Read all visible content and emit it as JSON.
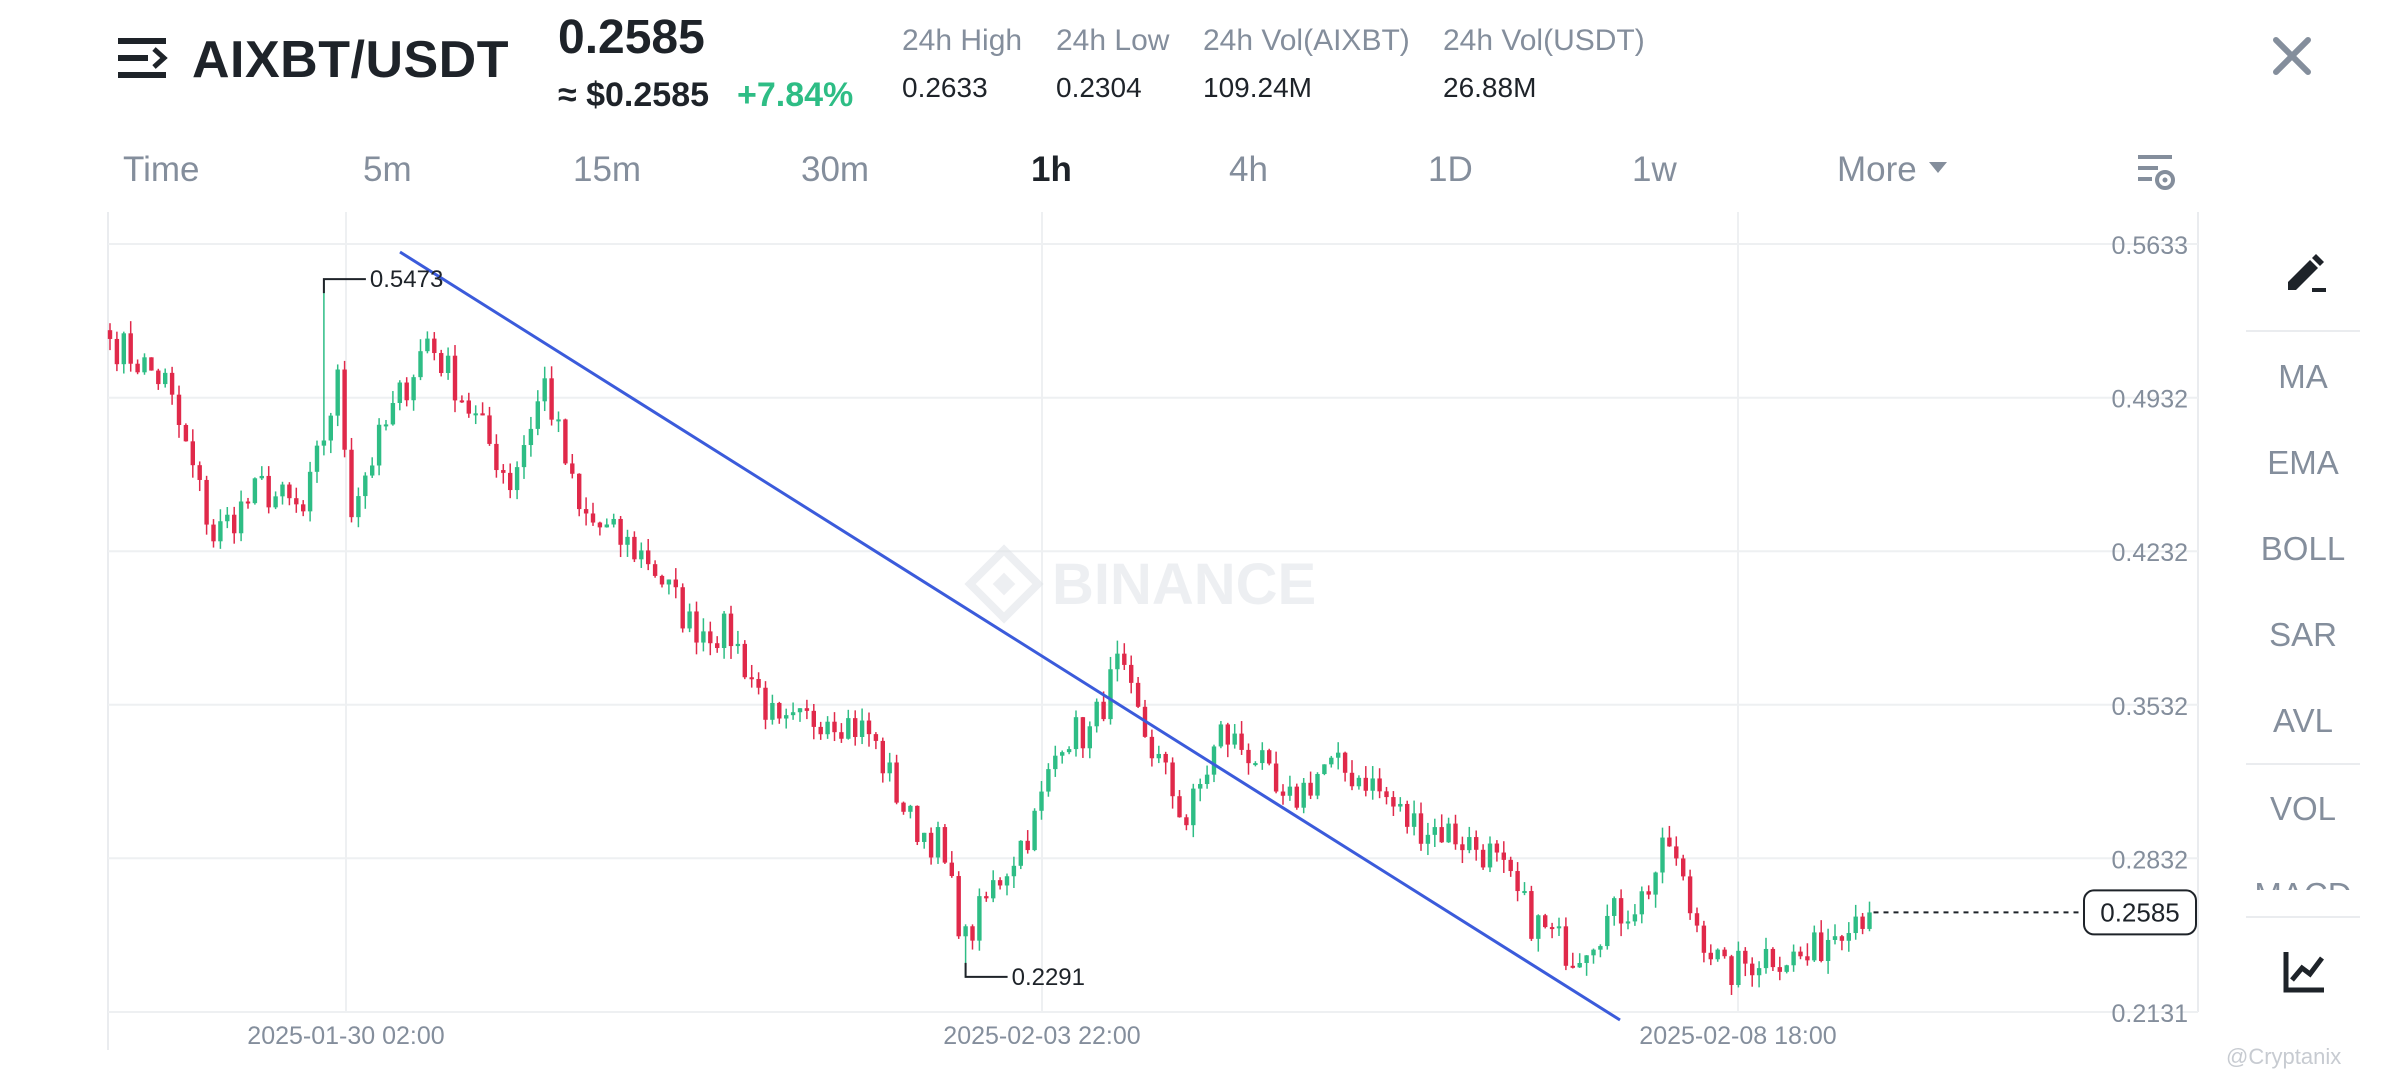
{
  "header": {
    "pair": "AIXBT/USDT",
    "price": "0.2585",
    "approx_usd": "≈ $0.2585",
    "change": "+7.84%",
    "stats": [
      {
        "label": "24h High",
        "value": "0.2633"
      },
      {
        "label": "24h Low",
        "value": "0.2304"
      },
      {
        "label": "24h Vol(AIXBT)",
        "value": "109.24M"
      },
      {
        "label": "24h Vol(USDT)",
        "value": "26.88M"
      }
    ]
  },
  "tabs": [
    {
      "label": "Time",
      "active": false
    },
    {
      "label": "5m",
      "active": false
    },
    {
      "label": "15m",
      "active": false
    },
    {
      "label": "30m",
      "active": false
    },
    {
      "label": "1h",
      "active": true
    },
    {
      "label": "4h",
      "active": false
    },
    {
      "label": "1D",
      "active": false
    },
    {
      "label": "1w",
      "active": false
    },
    {
      "label": "More",
      "active": false
    }
  ],
  "sidebar": {
    "indicators": [
      "MA",
      "EMA",
      "BOLL",
      "SAR",
      "AVL",
      "VOL",
      "MACD"
    ]
  },
  "watermark": "BINANCE",
  "credit": "@Cryptanix",
  "icons": {
    "menu": "menu-icon",
    "close": "close-icon",
    "settings": "chart-settings-icon",
    "draw": "pencil-icon",
    "indicators": "indicator-chart-icon"
  },
  "colors": {
    "up": "#2ebd85",
    "down": "#e0294a",
    "trendline": "#3b5bdb",
    "text_muted": "#848e9c"
  },
  "chart_data": {
    "type": "candlestick",
    "interval": "1h",
    "y_ticks": [
      "0.5633",
      "0.4932",
      "0.4232",
      "0.3532",
      "0.2832",
      "0.2131"
    ],
    "ylim": [
      0.2131,
      0.5633
    ],
    "x_ticks": [
      "2025-01-30 02:00",
      "2025-02-03 22:00",
      "2025-02-08 18:00"
    ],
    "current_price_label": "0.2585",
    "current_price": 0.2585,
    "high_annotation": {
      "label": "0.5473",
      "value": 0.5473
    },
    "low_annotation": {
      "label": "0.2291",
      "value": 0.2291
    },
    "trendline": {
      "from_value": 0.5633,
      "to_value": 0.2131
    },
    "close_path": [
      {
        "idx": 0,
        "value": 0.52
      },
      {
        "idx": 8,
        "value": 0.5
      },
      {
        "idx": 15,
        "value": 0.43
      },
      {
        "idx": 22,
        "value": 0.452
      },
      {
        "idx": 28,
        "value": 0.44
      },
      {
        "idx": 33,
        "value": 0.5
      },
      {
        "idx": 35,
        "value": 0.445
      },
      {
        "idx": 40,
        "value": 0.48
      },
      {
        "idx": 46,
        "value": 0.52
      },
      {
        "idx": 50,
        "value": 0.5
      },
      {
        "idx": 58,
        "value": 0.455
      },
      {
        "idx": 63,
        "value": 0.5
      },
      {
        "idx": 68,
        "value": 0.44
      },
      {
        "idx": 78,
        "value": 0.42
      },
      {
        "idx": 84,
        "value": 0.39
      },
      {
        "idx": 90,
        "value": 0.385
      },
      {
        "idx": 97,
        "value": 0.34
      },
      {
        "idx": 104,
        "value": 0.35
      },
      {
        "idx": 110,
        "value": 0.34
      },
      {
        "idx": 116,
        "value": 0.3
      },
      {
        "idx": 120,
        "value": 0.29
      },
      {
        "idx": 124,
        "value": 0.245
      },
      {
        "idx": 128,
        "value": 0.27
      },
      {
        "idx": 134,
        "value": 0.3
      },
      {
        "idx": 138,
        "value": 0.34
      },
      {
        "idx": 142,
        "value": 0.34
      },
      {
        "idx": 146,
        "value": 0.37
      },
      {
        "idx": 150,
        "value": 0.34
      },
      {
        "idx": 156,
        "value": 0.3
      },
      {
        "idx": 161,
        "value": 0.34
      },
      {
        "idx": 166,
        "value": 0.33
      },
      {
        "idx": 170,
        "value": 0.305
      },
      {
        "idx": 176,
        "value": 0.325
      },
      {
        "idx": 182,
        "value": 0.32
      },
      {
        "idx": 188,
        "value": 0.3
      },
      {
        "idx": 194,
        "value": 0.295
      },
      {
        "idx": 200,
        "value": 0.285
      },
      {
        "idx": 206,
        "value": 0.255
      },
      {
        "idx": 212,
        "value": 0.24
      },
      {
        "idx": 217,
        "value": 0.255
      },
      {
        "idx": 222,
        "value": 0.265
      },
      {
        "idx": 226,
        "value": 0.29
      },
      {
        "idx": 229,
        "value": 0.26
      },
      {
        "idx": 234,
        "value": 0.23
      },
      {
        "idx": 240,
        "value": 0.24
      },
      {
        "idx": 246,
        "value": 0.237
      },
      {
        "idx": 252,
        "value": 0.258
      },
      {
        "idx": 255,
        "value": 0.2585
      }
    ]
  }
}
